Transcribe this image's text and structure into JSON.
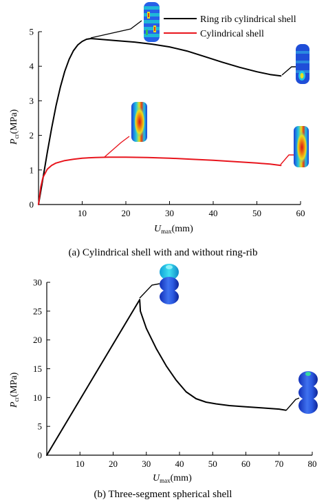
{
  "chart_data": [
    {
      "type": "line",
      "caption": "(a) Cylindrical shell with and without ring-rib",
      "ylabel_main": "P",
      "ylabel_sub": "cr",
      "ylabel_unit": "(MPa)",
      "xlabel_main": "U",
      "xlabel_sub": "max",
      "xlabel_unit": "(mm)",
      "xlim": [
        0,
        60
      ],
      "ylim": [
        0,
        5
      ],
      "xticks": [
        "10",
        "20",
        "30",
        "40",
        "50",
        "60"
      ],
      "yticks": [
        "0",
        "1",
        "2",
        "3",
        "4",
        "5"
      ],
      "legend_position": "top-right",
      "series": [
        {
          "name": "Ring rib cylindrical shell",
          "color": "#000000",
          "x": [
            0,
            1,
            2,
            3,
            4,
            5,
            6,
            7,
            8,
            9,
            10,
            11,
            12,
            14,
            18,
            22,
            26,
            30,
            34,
            38,
            42,
            46,
            50,
            53,
            55.5
          ],
          "y": [
            0,
            0.75,
            1.5,
            2.2,
            2.85,
            3.4,
            3.85,
            4.2,
            4.45,
            4.62,
            4.72,
            4.78,
            4.8,
            4.78,
            4.74,
            4.7,
            4.64,
            4.56,
            4.44,
            4.28,
            4.12,
            3.97,
            3.84,
            3.76,
            3.72
          ]
        },
        {
          "name": "Cylindrical shell",
          "color": "#e8141c",
          "x": [
            0,
            0.5,
            1,
            2,
            3,
            4,
            6,
            8,
            10,
            13,
            16,
            20,
            25,
            30,
            35,
            40,
            45,
            50,
            53,
            55.5
          ],
          "y": [
            0,
            0.5,
            0.78,
            1.02,
            1.13,
            1.2,
            1.27,
            1.31,
            1.34,
            1.36,
            1.37,
            1.37,
            1.36,
            1.34,
            1.31,
            1.28,
            1.24,
            1.2,
            1.17,
            1.13
          ]
        }
      ]
    },
    {
      "type": "line",
      "caption": "(b) Three-segment spherical shell",
      "ylabel_main": "P",
      "ylabel_sub": "cr",
      "ylabel_unit": "(MPa)",
      "xlabel_main": "U",
      "xlabel_sub": "max",
      "xlabel_unit": "(mm)",
      "xlim": [
        0,
        80
      ],
      "ylim": [
        0,
        30
      ],
      "xticks": [
        "10",
        "20",
        "30",
        "40",
        "50",
        "60",
        "70",
        "80"
      ],
      "yticks": [
        "0",
        "5",
        "10",
        "15",
        "20",
        "25",
        "30"
      ],
      "series": [
        {
          "color": "#000000",
          "x": [
            0,
            28,
            28.1,
            28.2,
            30,
            33,
            36,
            39,
            42,
            45,
            48,
            51,
            55,
            60,
            65,
            70,
            72
          ],
          "y": [
            0,
            27,
            26,
            25,
            22,
            18.5,
            15.5,
            13,
            11,
            9.8,
            9.2,
            8.9,
            8.6,
            8.4,
            8.2,
            8.0,
            7.8
          ]
        }
      ]
    }
  ],
  "icons": {
    "a_ring_top": "ring-rib-shell-buckled-icon",
    "a_ring_end": "ring-rib-shell-deformed-icon",
    "a_cyl_mid": "cylindrical-shell-buckled-icon",
    "a_cyl_end": "cylindrical-shell-deformed-icon",
    "b_peak": "spherical-shell-buckled-icon",
    "b_end": "spherical-shell-deformed-icon"
  }
}
